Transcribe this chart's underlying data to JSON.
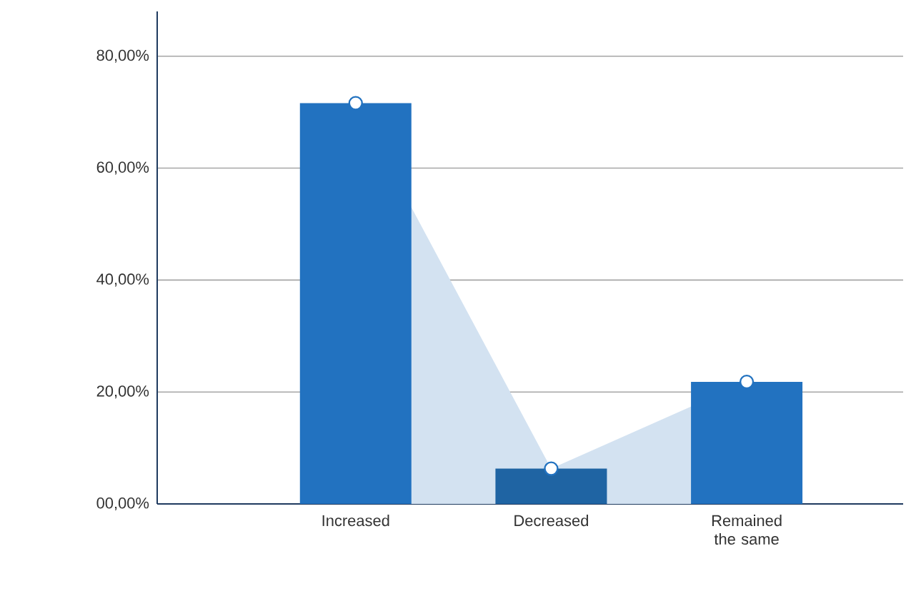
{
  "chart_data": {
    "type": "bar",
    "categories": [
      "Increased",
      "Decreased",
      "Remained the same"
    ],
    "series": [
      {
        "type": "area",
        "color": "#d3e2f1",
        "values": [
          71.6,
          6.3,
          21.8
        ]
      },
      {
        "colors": [
          "#2272c0",
          "#1f64a3",
          "#2272c0"
        ],
        "values": [
          71.6,
          6.3,
          21.8
        ]
      }
    ],
    "ylim": [
      0,
      88
    ],
    "yticks": [
      {
        "value": 0,
        "label": "00,00%"
      },
      {
        "value": 20,
        "label": "20,00%"
      },
      {
        "value": 40,
        "label": "40,00%"
      },
      {
        "value": 60,
        "label": "60,00%"
      },
      {
        "value": 80,
        "label": "80,00%"
      }
    ],
    "grid": "y",
    "marker": "circle"
  }
}
